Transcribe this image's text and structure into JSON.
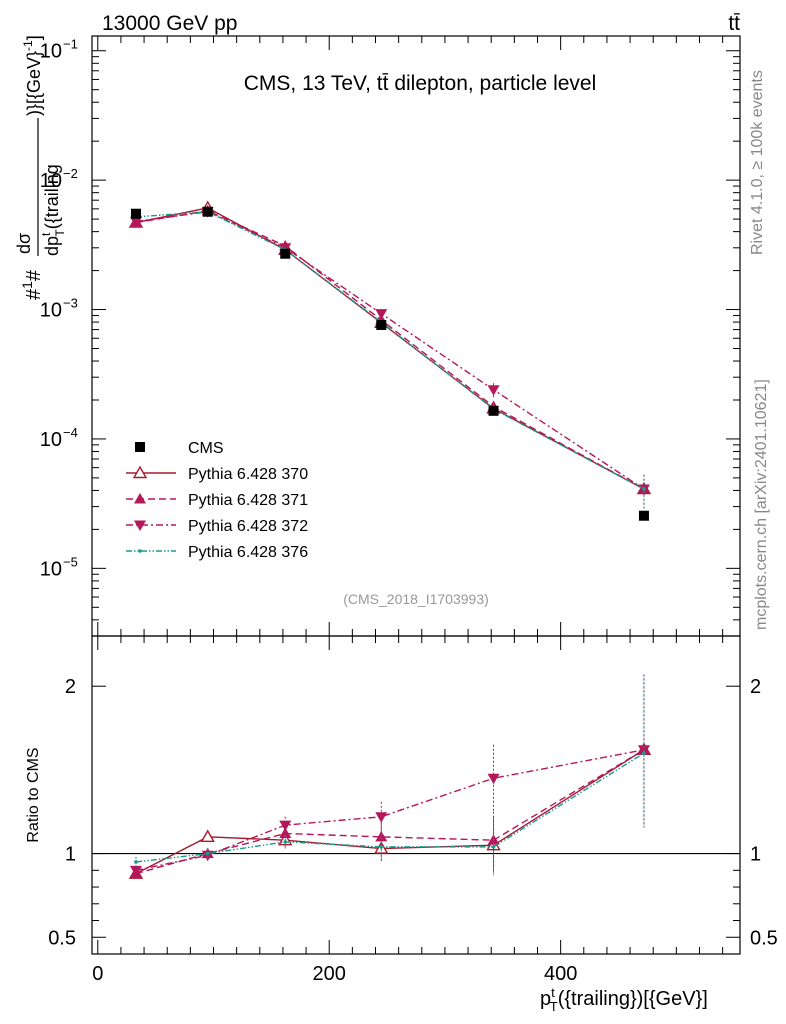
{
  "header": {
    "energy_label": "13000 GeV pp",
    "process_label": "tt̄"
  },
  "side": {
    "rivet_label": "Rivet 4.1.0, ≥ 100k events",
    "source_label": "mcplots.cern.ch [arXiv:2401.10621]"
  },
  "chart_data": {
    "type": "line",
    "title": "CMS, 13 TeV, tt̄ dilepton, particle level",
    "analysis_tag": "(CMS_2018_I1703993)",
    "xlabel": "p_T^t({trailing})[{GeV}]",
    "ylabel": "#1/σ# dσ/dp_T^t({trailing})[{GeV}^-1]",
    "xlim": [
      -5,
      555
    ],
    "ylim": [
      3e-06,
      0.13
    ],
    "yscale": "log",
    "x_ticks": [
      0,
      200,
      400
    ],
    "y_ticks": [
      {
        "value": 0.1,
        "base": "10",
        "exp": "−1"
      },
      {
        "value": 0.01,
        "base": "10",
        "exp": "−2"
      },
      {
        "value": 0.001,
        "base": "10",
        "exp": "−3"
      },
      {
        "value": 0.0001,
        "base": "10",
        "exp": "−4"
      },
      {
        "value": 1e-05,
        "base": "10",
        "exp": "−5"
      }
    ],
    "x": [
      33,
      95,
      162,
      245,
      342,
      472
    ],
    "data": {
      "name": "CMS",
      "values": [
        0.0055,
        0.0057,
        0.0027,
        0.00076,
        0.000165,
        2.55e-05
      ]
    },
    "series": [
      {
        "name": "Pythia 6.428 370",
        "color": "#a61c2e",
        "style": "solid",
        "marker": "triangle-open",
        "values": [
          0.0047,
          0.0061,
          0.0029,
          0.00079,
          0.000172,
          4.1e-05
        ],
        "errors": [
          0.00015,
          0.00018,
          0.0001,
          3e-05,
          1.5e-05,
          1.2e-05
        ]
      },
      {
        "name": "Pythia 6.428 371",
        "color": "#b5175a",
        "style": "dashed",
        "marker": "triangle-up",
        "values": [
          0.0047,
          0.0058,
          0.0031,
          0.00083,
          0.000178,
          4.1e-05
        ],
        "errors": [
          0.00015,
          0.00018,
          0.0001,
          3e-05,
          1.5e-05,
          1.2e-05
        ]
      },
      {
        "name": "Pythia 6.428 372",
        "color": "#b5175a",
        "style": "dashdot",
        "marker": "triangle-down",
        "values": [
          0.0048,
          0.0057,
          0.003,
          0.00093,
          0.00024,
          4.1e-05
        ],
        "errors": [
          0.00015,
          0.00018,
          0.0001,
          4e-05,
          3e-05,
          1.2e-05
        ]
      },
      {
        "name": "Pythia 6.428 376",
        "color": "#1a9b8c",
        "style": "dashdotdot",
        "marker": "dot",
        "values": [
          0.0052,
          0.0057,
          0.0029,
          0.0008,
          0.00017,
          4.1e-05
        ],
        "errors": [
          0.00015,
          0.00018,
          0.0001,
          3e-05,
          1.5e-05,
          1.2e-05
        ]
      }
    ],
    "ratio": {
      "ylabel": "Ratio to CMS",
      "ylim": [
        0.4,
        2.3
      ],
      "ticks": [
        0.5,
        1,
        2
      ],
      "tick_labels": [
        "0.5",
        "1",
        "2"
      ],
      "series": [
        {
          "values": [
            0.88,
            1.1,
            1.08,
            1.03,
            1.05,
            1.62
          ],
          "errors": [
            0.03,
            0.03,
            0.04,
            0.08,
            0.17,
            0.45
          ]
        },
        {
          "values": [
            0.88,
            1.0,
            1.12,
            1.1,
            1.08,
            1.62
          ],
          "errors": [
            0.03,
            0.03,
            0.04,
            0.08,
            0.17,
            0.45
          ]
        },
        {
          "values": [
            0.9,
            0.99,
            1.17,
            1.22,
            1.45,
            1.62
          ],
          "errors": [
            0.03,
            0.03,
            0.05,
            0.09,
            0.2,
            0.45
          ]
        },
        {
          "values": [
            0.95,
            1.0,
            1.07,
            1.04,
            1.04,
            1.6
          ],
          "errors": [
            0.03,
            0.03,
            0.04,
            0.08,
            0.17,
            0.45
          ]
        }
      ]
    }
  }
}
